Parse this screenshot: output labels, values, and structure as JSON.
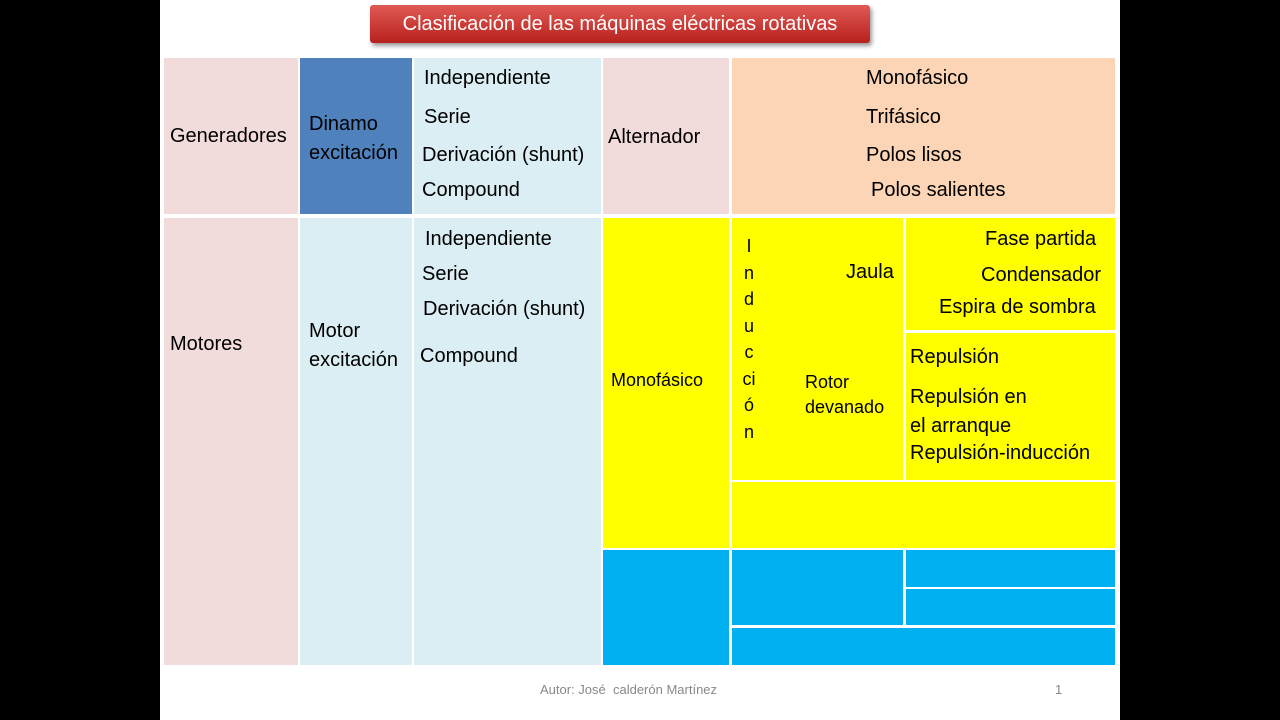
{
  "title": "Clasificación de las máquinas eléctricas rotativas",
  "generators": {
    "label": "Generadores",
    "dc_machine": "Dinamo excitación",
    "dc_types": [
      "Independiente",
      "Serie",
      "Derivación (shunt)",
      "Compound"
    ],
    "ac_machine": "Alternador",
    "ac_types": [
      "Monofásico",
      "Trifásico",
      "Polos lisos",
      "Polos salientes"
    ]
  },
  "motors": {
    "label": "Motores",
    "dc_machine": "Motor excitación",
    "dc_types": [
      "Independiente",
      "Serie",
      "Derivación (shunt)",
      "Compound"
    ],
    "ac_group": "Monofásico",
    "induction": "Inducción",
    "cage": "Jaula",
    "cage_types": [
      "Fase partida",
      "Condensador",
      "Espira de sombra"
    ],
    "wound_rotor": "Rotor devanado",
    "wound_types": [
      "Repulsión",
      "Repulsión en el arranque",
      "Repulsión-inducción"
    ]
  },
  "footer": {
    "author": "Autor: José  calderón Martínez",
    "page": "1"
  }
}
